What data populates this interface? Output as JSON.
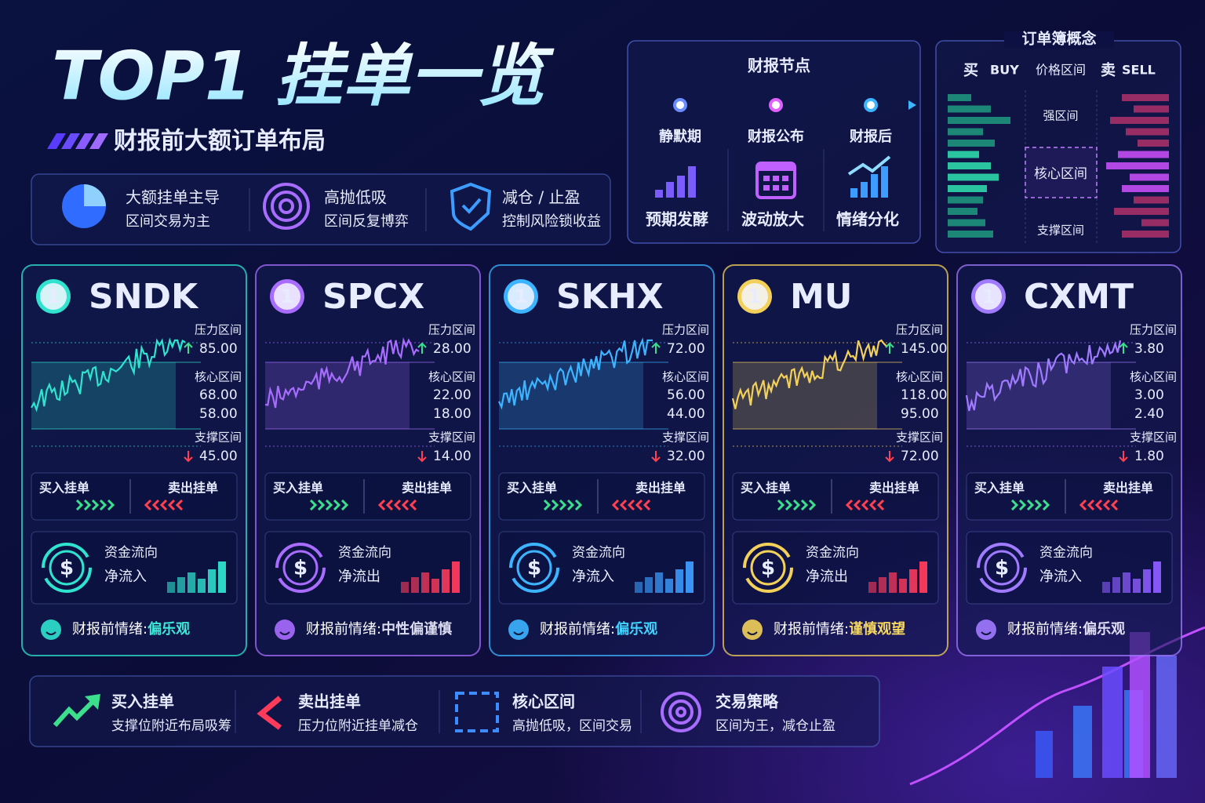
{
  "header": {
    "title": "TOP1 挂单一览",
    "subtitle": "财报前大额订单布局"
  },
  "features": [
    {
      "title": "大额挂单主导",
      "desc": "区间交易为主"
    },
    {
      "title": "高抛低吸",
      "desc": "区间反复博弈"
    },
    {
      "title": "减仓 / 止盈",
      "desc": "控制风险锁收益"
    }
  ],
  "timeline": {
    "title": "财报节点",
    "stages": [
      {
        "name": "静默期",
        "label": "预期发酵"
      },
      {
        "name": "财报公布",
        "label": "波动放大"
      },
      {
        "name": "财报后",
        "label": "情绪分化"
      }
    ]
  },
  "orderbook": {
    "title": "订单簿概念",
    "buy": "买",
    "buy_en": "BUY",
    "price": "价格区间",
    "sell": "卖",
    "sell_en": "SELL",
    "zones": [
      "强区间",
      "核心区间",
      "支撑区间"
    ]
  },
  "labels": {
    "pressure": "压力区间",
    "core": "核心区间",
    "support": "支撑区间",
    "buy": "买入挂单",
    "sell": "卖出挂单",
    "flow_title": "资金流向",
    "currency": "$",
    "sentiment": "财报前情绪:"
  },
  "cards": [
    {
      "rank": "1",
      "ticker": "SNDK",
      "color": "#2fe3cf",
      "pressure": "85.00",
      "core_high": "68.00",
      "core_low": "58.00",
      "support": "45.00",
      "flow": "净流入",
      "flow_color": "#2fe3cf",
      "sentiment": "偏乐观",
      "sentiment_color": "#3fe8d8"
    },
    {
      "rank": "1",
      "ticker": "SPCX",
      "color": "#a86cff",
      "pressure": "28.00",
      "core_high": "22.00",
      "core_low": "18.00",
      "support": "14.00",
      "flow": "净流出",
      "flow_color": "#ff3b5c",
      "sentiment": "中性偏谨慎",
      "sentiment_color": "#dcdcf0"
    },
    {
      "rank": "1",
      "ticker": "SKHX",
      "color": "#3cb4ff",
      "pressure": "72.00",
      "core_high": "56.00",
      "core_low": "44.00",
      "support": "32.00",
      "flow": "净流入",
      "flow_color": "#3c9cff",
      "sentiment": "偏乐观",
      "sentiment_color": "#3fd4ff"
    },
    {
      "rank": "1",
      "ticker": "MU",
      "color": "#f2d05a",
      "pressure": "145.00",
      "core_high": "118.00",
      "core_low": "95.00",
      "support": "72.00",
      "flow": "净流出",
      "flow_color": "#ff3b5c",
      "sentiment": "谨慎观望",
      "sentiment_color": "#f6d860"
    },
    {
      "rank": "1",
      "ticker": "CXMT",
      "color": "#a07aff",
      "pressure": "3.80",
      "core_high": "3.00",
      "core_low": "2.40",
      "support": "1.80",
      "flow": "净流入",
      "flow_color": "#8c5cff",
      "sentiment": "偏乐观",
      "sentiment_color": "#e0dcf4"
    }
  ],
  "legend": [
    {
      "title": "买入挂单",
      "desc": "支撑位附近布局吸筹"
    },
    {
      "title": "卖出挂单",
      "desc": "压力位附近挂单减仓"
    },
    {
      "title": "核心区间",
      "desc": "高抛低吸，区间交易"
    },
    {
      "title": "交易策略",
      "desc": "区间为王，减仓止盈"
    }
  ]
}
